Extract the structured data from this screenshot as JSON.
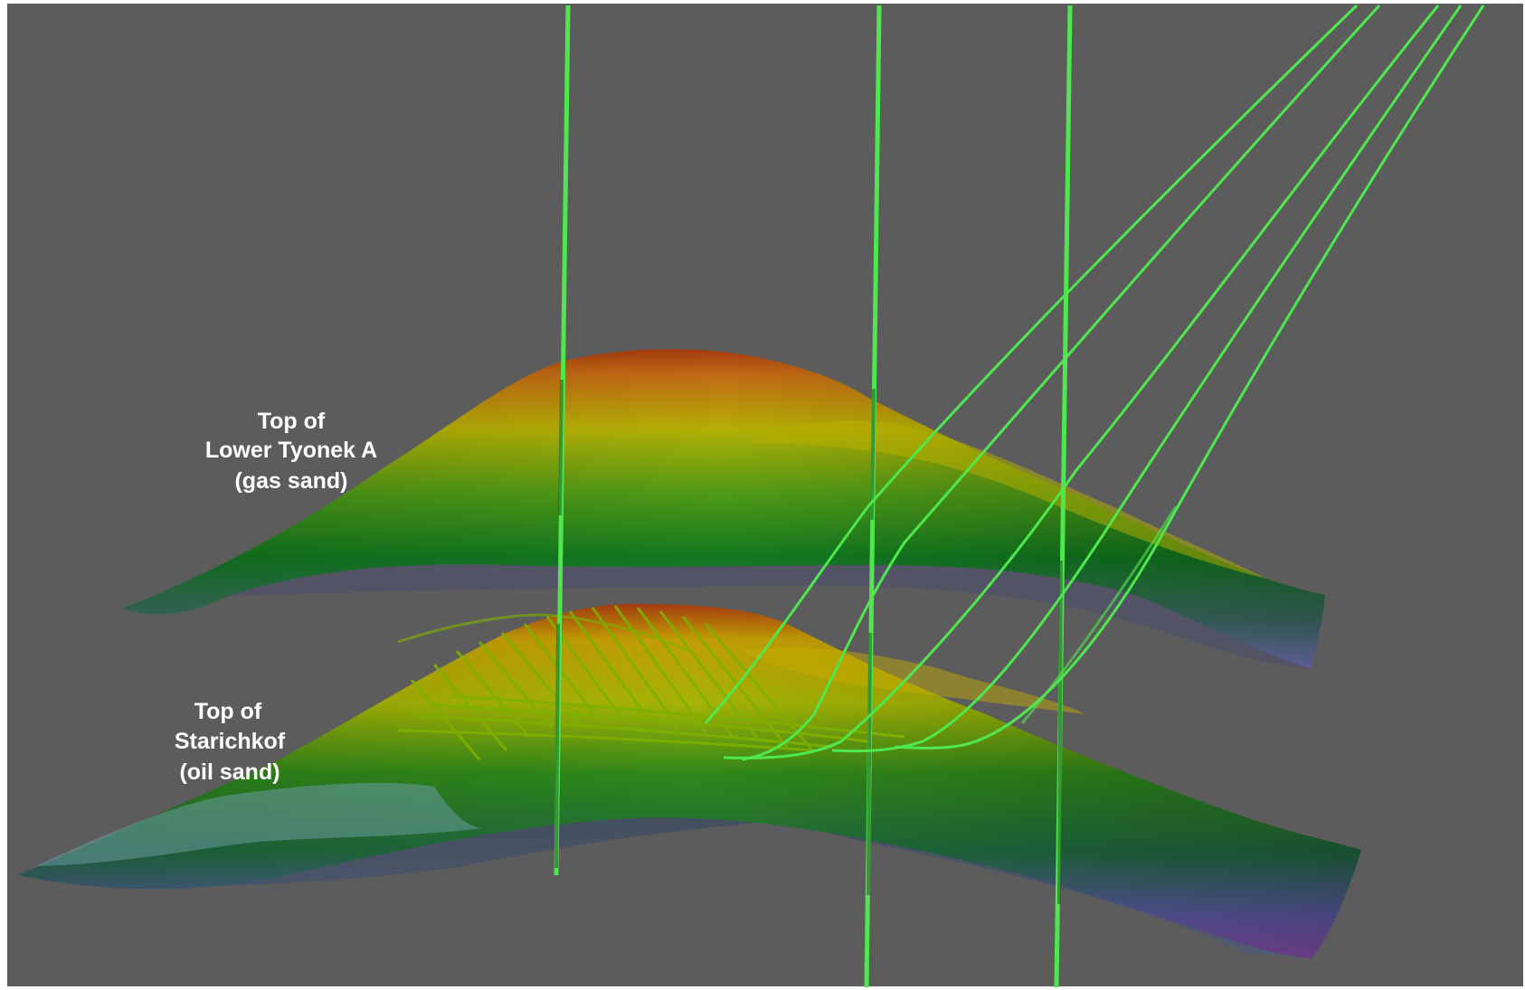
{
  "scene": {
    "background_color": "#5c5c5c",
    "frame_color": "#ffffff",
    "well_color": "#4ee84e"
  },
  "surfaces": [
    {
      "id": "lower-tyonek-a",
      "label_lines": [
        "Top of",
        "Lower Tyonek A",
        "(gas sand)"
      ],
      "color_ramp": [
        "#b84a10",
        "#c8b400",
        "#0f8a1a",
        "#7a78c8"
      ]
    },
    {
      "id": "starichkof",
      "label_lines": [
        "Top of",
        "Starichkof",
        "(oil sand)"
      ],
      "color_ramp": [
        "#b84a10",
        "#c8b400",
        "#0f8a1a",
        "#8a5ab8"
      ]
    }
  ]
}
